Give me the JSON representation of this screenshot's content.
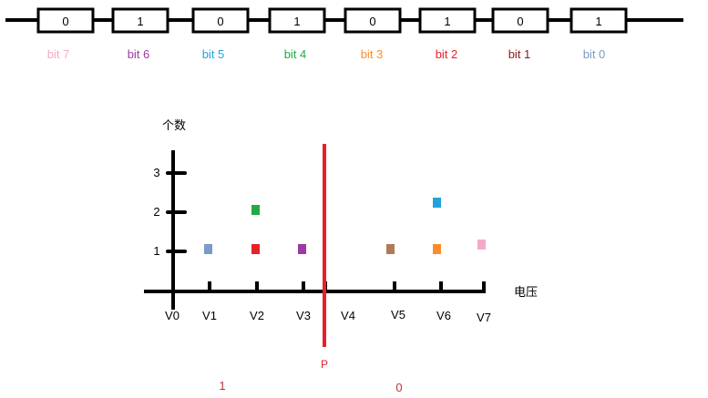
{
  "register": {
    "cells": [
      {
        "value": "0",
        "label": "bit 7",
        "label_color": "#f4a9c8"
      },
      {
        "value": "1",
        "label": "bit 6",
        "label_color": "#9b3aa0"
      },
      {
        "value": "0",
        "label": "bit 5",
        "label_color": "#22a3db"
      },
      {
        "value": "1",
        "label": "bit 4",
        "label_color": "#22aa44"
      },
      {
        "value": "0",
        "label": "bit 3",
        "label_color": "#ff8c2a"
      },
      {
        "value": "1",
        "label": "bit 2",
        "label_color": "#e8202a"
      },
      {
        "value": "0",
        "label": "bit 1",
        "label_color": "#8b1a1a"
      },
      {
        "value": "1",
        "label": "bit 0",
        "label_color": "#7a9cc6"
      }
    ]
  },
  "plot": {
    "ylabel": "个数",
    "xlabel": "电压",
    "y_ticks": [
      "1",
      "2",
      "3"
    ],
    "x_ticks": [
      "V0",
      "V1",
      "V2",
      "V3",
      "V4",
      "V5",
      "V6",
      "V7"
    ],
    "points": [
      {
        "x": "V1",
        "y": 1,
        "color": "#7a9cc6"
      },
      {
        "x": "V2",
        "y": 1,
        "color": "#e8202a"
      },
      {
        "x": "V2",
        "y": 2,
        "color": "#22aa44"
      },
      {
        "x": "V3",
        "y": 1,
        "color": "#9b3aa0"
      },
      {
        "x": "V5",
        "y": 1,
        "color": "#b07a5a"
      },
      {
        "x": "V6",
        "y": 1,
        "color": "#ff8c2a"
      },
      {
        "x": "V6",
        "y": 2,
        "color": "#22a3db"
      },
      {
        "x": "V7",
        "y": 1,
        "color": "#f4a9c8"
      }
    ],
    "threshold": {
      "label": "P",
      "color": "#e8202a"
    },
    "regions": [
      {
        "label": "1",
        "color": "#c0303a"
      },
      {
        "label": "0",
        "color": "#c0303a"
      }
    ]
  }
}
